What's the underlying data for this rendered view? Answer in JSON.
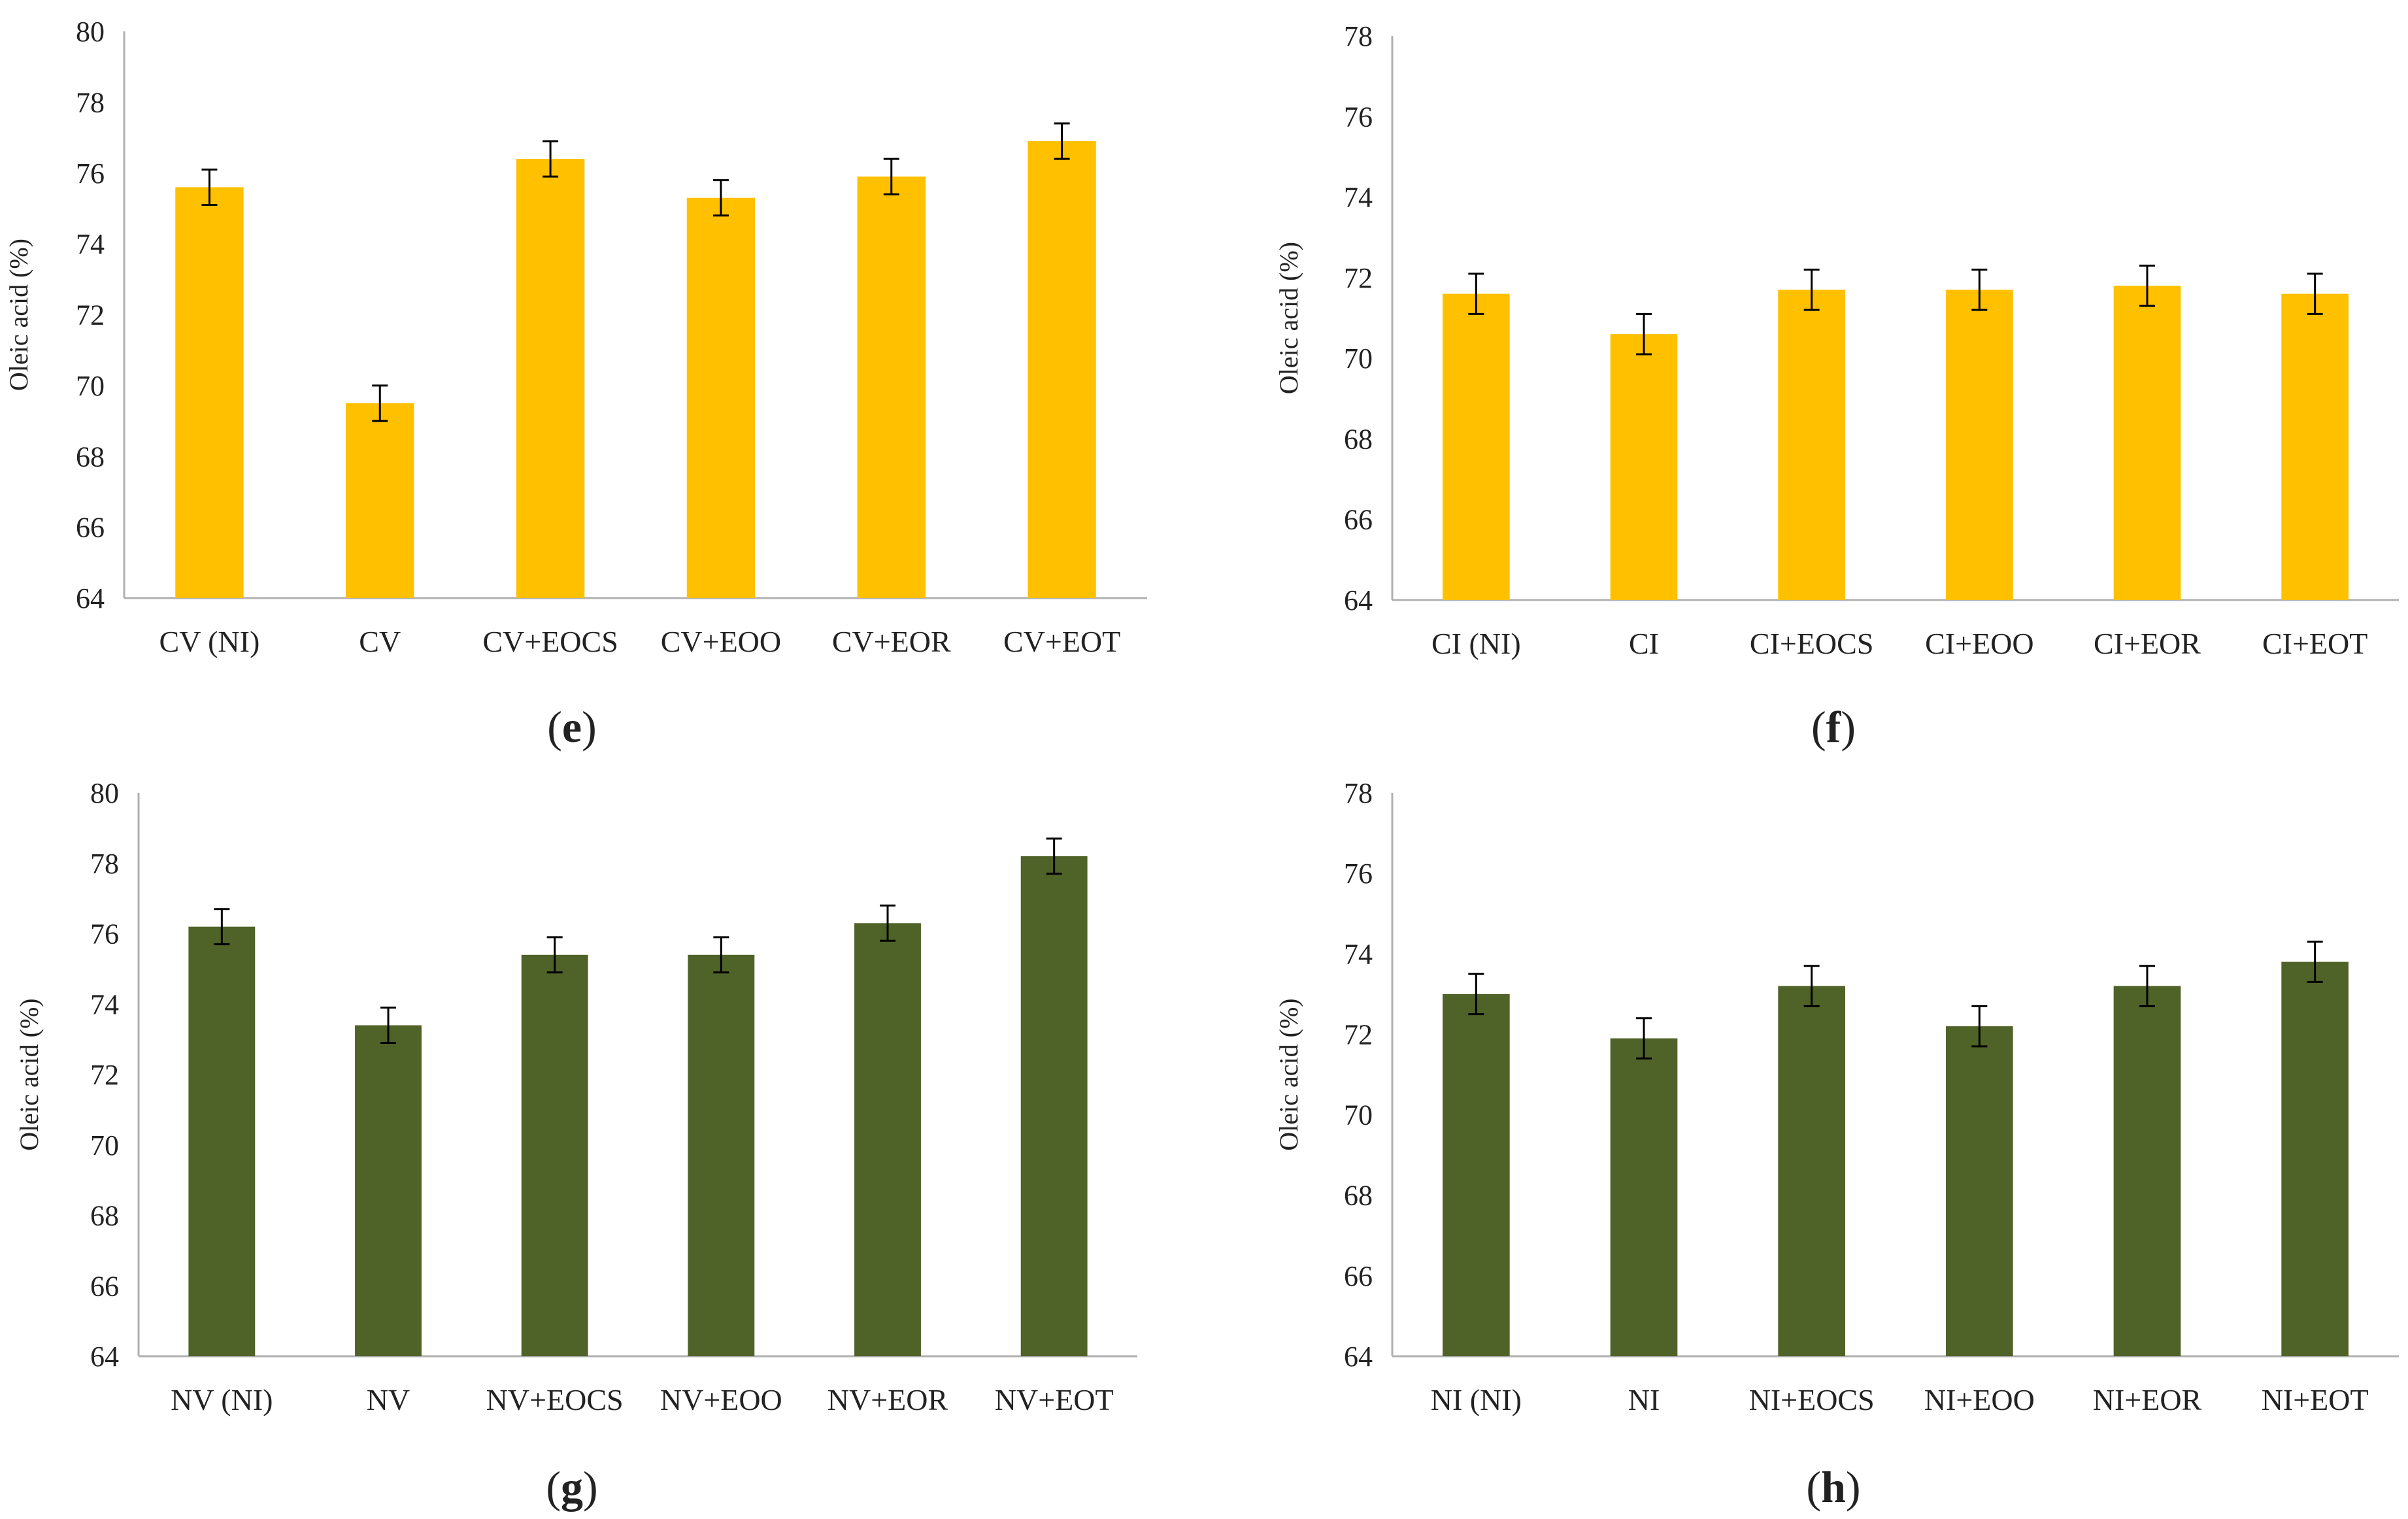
{
  "colors": {
    "yellow": "#FFC000",
    "green": "#4F6228",
    "axis": "#B0B0B0",
    "error": "#000000"
  },
  "chart_data": [
    {
      "type": "bar",
      "panel": "e",
      "ylabel": "Oleic acid (%)",
      "ylim": [
        64,
        80
      ],
      "yticks": [
        64,
        66,
        68,
        70,
        72,
        74,
        76,
        78,
        80
      ],
      "categories": [
        "CV (NI)",
        "CV",
        "CV+EOCS",
        "CV+EOO",
        "CV+EOR",
        "CV+EOT"
      ],
      "values": [
        75.6,
        69.5,
        76.4,
        75.3,
        75.9,
        76.9
      ],
      "error": 0.5,
      "color": "yellow"
    },
    {
      "type": "bar",
      "panel": "f",
      "ylabel": "Oleic acid (%)",
      "ylim": [
        64,
        78
      ],
      "yticks": [
        64,
        66,
        68,
        70,
        72,
        74,
        76,
        78
      ],
      "categories": [
        "CI (NI)",
        "CI",
        "CI+EOCS",
        "CI+EOO",
        "CI+EOR",
        "CI+EOT"
      ],
      "values": [
        71.6,
        70.6,
        71.7,
        71.7,
        71.8,
        71.6
      ],
      "error": 0.5,
      "color": "yellow"
    },
    {
      "type": "bar",
      "panel": "g",
      "ylabel": "Oleic acid (%)",
      "ylim": [
        64,
        80
      ],
      "yticks": [
        64,
        66,
        68,
        70,
        72,
        74,
        76,
        78,
        80
      ],
      "categories": [
        "NV (NI)",
        "NV",
        "NV+EOCS",
        "NV+EOO",
        "NV+EOR",
        "NV+EOT"
      ],
      "values": [
        76.2,
        73.4,
        75.4,
        75.4,
        76.3,
        78.2
      ],
      "error": 0.5,
      "color": "green"
    },
    {
      "type": "bar",
      "panel": "h",
      "ylabel": "Oleic acid (%)",
      "ylim": [
        64,
        78
      ],
      "yticks": [
        64,
        66,
        68,
        70,
        72,
        74,
        76,
        78
      ],
      "categories": [
        "NI (NI)",
        "NI",
        "NI+EOCS",
        "NI+EOO",
        "NI+EOR",
        "NI+EOT"
      ],
      "values": [
        73.0,
        71.9,
        73.2,
        72.2,
        73.2,
        73.8
      ],
      "error": 0.5,
      "color": "green"
    }
  ],
  "panel_labels": [
    "e",
    "f",
    "g",
    "h"
  ]
}
